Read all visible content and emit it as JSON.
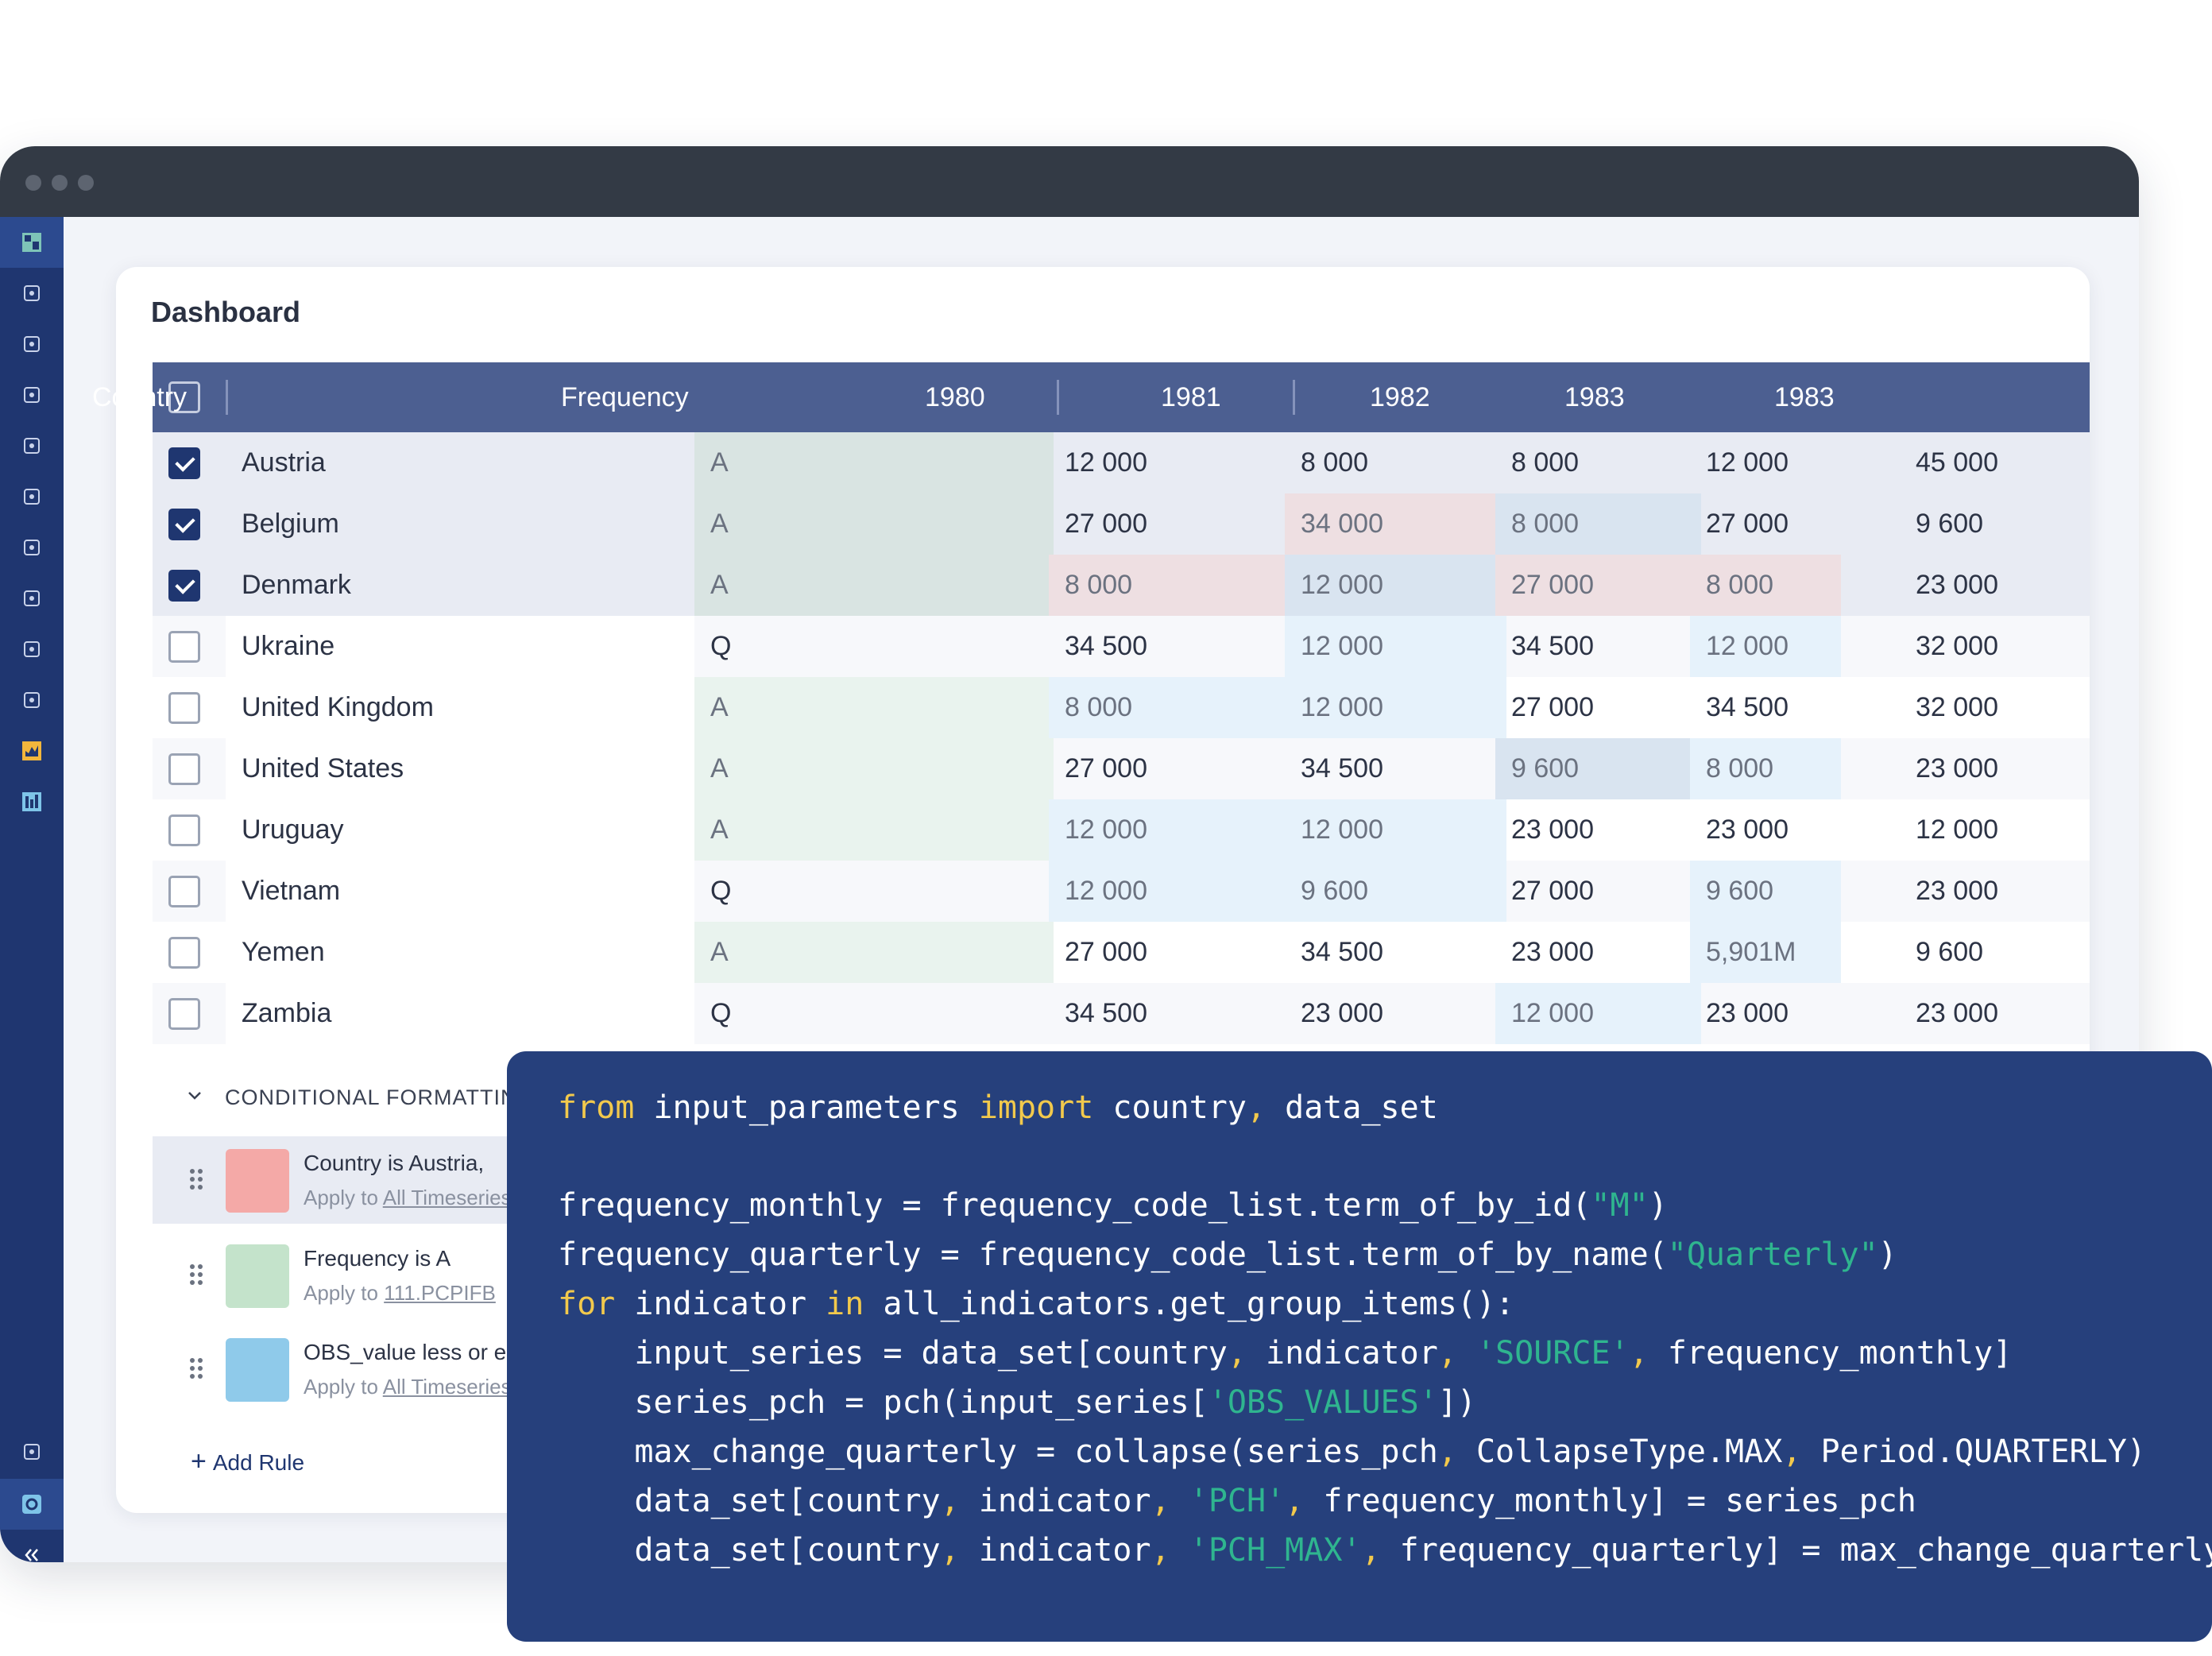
{
  "page": {
    "title": "Dashboard"
  },
  "table": {
    "columns": [
      "Country",
      "Frequency",
      "1980",
      "1981",
      "1982",
      "1983",
      "1983"
    ],
    "rows": [
      {
        "checked": true,
        "country": "Austria",
        "frequency": "A",
        "values": [
          "12 000",
          "8 000",
          "8 000",
          "12 000",
          "45 000"
        ]
      },
      {
        "checked": true,
        "country": "Belgium",
        "frequency": "A",
        "values": [
          "27 000",
          "34 000",
          "8 000",
          "27 000",
          "9 600"
        ]
      },
      {
        "checked": true,
        "country": "Denmark",
        "frequency": "A",
        "values": [
          "8 000",
          "12 000",
          "27 000",
          "8 000",
          "23 000"
        ]
      },
      {
        "checked": false,
        "country": "Ukraine",
        "frequency": "Q",
        "values": [
          "34 500",
          "12 000",
          "34 500",
          "12 000",
          "32 000"
        ]
      },
      {
        "checked": false,
        "country": "United Kingdom",
        "frequency": "A",
        "values": [
          "8 000",
          "12 000",
          "27 000",
          "34 500",
          "32 000"
        ]
      },
      {
        "checked": false,
        "country": "United States",
        "frequency": "A",
        "values": [
          "27 000",
          "34 500",
          "9 600",
          "8 000",
          "23 000"
        ]
      },
      {
        "checked": false,
        "country": "Uruguay",
        "frequency": "A",
        "values": [
          "12 000",
          "12 000",
          "23 000",
          "23 000",
          "12 000"
        ]
      },
      {
        "checked": false,
        "country": "Vietnam",
        "frequency": "Q",
        "values": [
          "12 000",
          "9 600",
          "27 000",
          "9 600",
          "23 000"
        ]
      },
      {
        "checked": false,
        "country": "Yemen",
        "frequency": "A",
        "values": [
          "27 000",
          "34 500",
          "23 000",
          "5,901M",
          "9 600"
        ]
      },
      {
        "checked": false,
        "country": "Zambia",
        "frequency": "Q",
        "values": [
          "34 500",
          "23 000",
          "12 000",
          "23 000",
          "23 000"
        ]
      }
    ]
  },
  "conditional_formatting": {
    "title": "CONDITIONAL FORMATTING",
    "rules": [
      {
        "text": "Country is Austria,",
        "apply_prefix": "Apply to ",
        "apply_target": "All Timeseries",
        "color": "#f4a9a7"
      },
      {
        "text": "Frequency is A",
        "apply_prefix": "Apply to ",
        "apply_target": "111.PCPIFB",
        "color": "#c4e3cb"
      },
      {
        "text": "OBS_value less or equal",
        "apply_prefix": "Apply to ",
        "apply_target": "All Timeseries",
        "color": "#8fcaea"
      }
    ],
    "add_rule": "Add Rule"
  },
  "colors": {
    "sidebar": "#1f3670",
    "header": "#4c5f91",
    "code_bg": "#26407c",
    "keyword": "#f2c94c",
    "string": "#2fb58f",
    "red_cell": "#eedfe2",
    "blue_cell": "#d9e4f0",
    "light_blue_cell": "#e6f2fb",
    "green_cell": "#d9e4e2"
  },
  "sidebar_icons": [
    "dashboard-icon",
    "calendar-code-icon",
    "hierarchy-icon",
    "message-icon",
    "data-list-icon",
    "database-icon",
    "workflow-icon",
    "expand-arrows-icon",
    "network-icon",
    "shapes-icon",
    "chart-icon",
    "report-icon",
    "graph-icon",
    "settings-icon",
    "collapse-icon"
  ],
  "code": [
    [
      [
        "kw",
        "from"
      ],
      [
        "t",
        " input_parameters "
      ],
      [
        "kw",
        "import"
      ],
      [
        "t",
        " country"
      ],
      [
        "kw",
        ","
      ],
      [
        "t",
        " data_set"
      ]
    ],
    [],
    [
      [
        "t",
        "frequency_monthly = frequency_code_list.term_of_by_id("
      ],
      [
        "str",
        "\"M\""
      ],
      [
        "t",
        ")"
      ]
    ],
    [
      [
        "t",
        "frequency_quarterly = frequency_code_list.term_of_by_name("
      ],
      [
        "str",
        "\"Quarterly\""
      ],
      [
        "t",
        ")"
      ]
    ],
    [
      [
        "kw",
        "for"
      ],
      [
        "t",
        " indicator "
      ],
      [
        "kw",
        "in"
      ],
      [
        "t",
        " all_indicators.get_group_items():"
      ]
    ],
    [
      [
        "t",
        "    input_series = data_set[country"
      ],
      [
        "kw",
        ","
      ],
      [
        "t",
        " indicator"
      ],
      [
        "kw",
        ","
      ],
      [
        "t",
        " "
      ],
      [
        "str",
        "'SOURCE'"
      ],
      [
        "kw",
        ","
      ],
      [
        "t",
        " frequency_monthly]"
      ]
    ],
    [
      [
        "t",
        "    series_pch = pch(input_series["
      ],
      [
        "str",
        "'OBS_VALUES'"
      ],
      [
        "t",
        "])"
      ]
    ],
    [
      [
        "t",
        "    max_change_quarterly = collapse(series_pch"
      ],
      [
        "kw",
        ","
      ],
      [
        "t",
        " CollapseType.MAX"
      ],
      [
        "kw",
        ","
      ],
      [
        "t",
        " Period.QUARTERLY)"
      ]
    ],
    [
      [
        "t",
        "    data_set[country"
      ],
      [
        "kw",
        ","
      ],
      [
        "t",
        " indicator"
      ],
      [
        "kw",
        ","
      ],
      [
        "t",
        " "
      ],
      [
        "str",
        "'PCH'"
      ],
      [
        "kw",
        ","
      ],
      [
        "t",
        " frequency_monthly] = series_pch"
      ]
    ],
    [
      [
        "t",
        "    data_set[country"
      ],
      [
        "kw",
        ","
      ],
      [
        "t",
        " indicator"
      ],
      [
        "kw",
        ","
      ],
      [
        "t",
        " "
      ],
      [
        "str",
        "'PCH_MAX'"
      ],
      [
        "kw",
        ","
      ],
      [
        "t",
        " frequency_quarterly] = max_change_quarterly"
      ]
    ]
  ]
}
